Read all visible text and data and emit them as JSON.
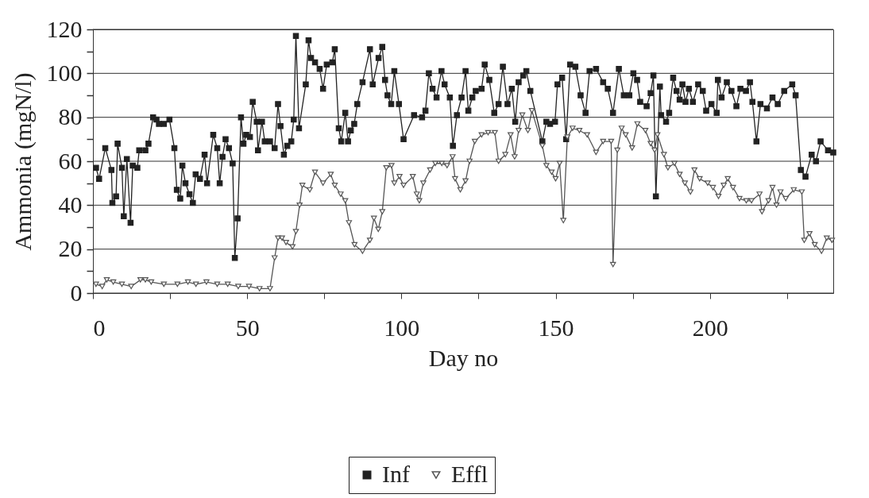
{
  "chart_data": {
    "type": "line",
    "xlabel": "Day no",
    "ylabel": "Ammonia (mgN/l)",
    "xlim": [
      0,
      240
    ],
    "ylim": [
      0,
      120
    ],
    "xticks": [
      0,
      {
        "value": 25,
        "label": null
      },
      50,
      {
        "value": 75,
        "label": null
      },
      100,
      {
        "value": 125,
        "label": null
      },
      150,
      {
        "value": 175,
        "label": null
      },
      200,
      {
        "value": 225,
        "label": null
      }
    ],
    "yticks": [
      0,
      {
        "value": 10,
        "label": null
      },
      20,
      {
        "value": 30,
        "label": null
      },
      40,
      {
        "value": 50,
        "label": null
      },
      60,
      {
        "value": 70,
        "label": null
      },
      80,
      {
        "value": 90,
        "label": null
      },
      100,
      {
        "value": 110,
        "label": null
      },
      120
    ],
    "grid": "y",
    "legend": "bottom",
    "line_style": "solid",
    "series": [
      {
        "name": "Inf",
        "color": "#222222",
        "marker": "square",
        "x": [
          1,
          2,
          4,
          6,
          6.3,
          7.5,
          8,
          9.4,
          10,
          11,
          12.2,
          12.9,
          14.4,
          15,
          17,
          18,
          19.5,
          20.6,
          21.4,
          23,
          24.8,
          26.4,
          27.2,
          28.3,
          29,
          30,
          31.3,
          32.4,
          33.3,
          34.7,
          36.2,
          37,
          39,
          40.3,
          41.1,
          42,
          43,
          44.1,
          45.3,
          46,
          46.9,
          48,
          48.8,
          49.7,
          50.9,
          51.8,
          53.1,
          53.5,
          54.8,
          55.7,
          57.4,
          58.9,
          60,
          60.8,
          61.9,
          63,
          64.3,
          65.1,
          65.8,
          66.8,
          69,
          69.9,
          70.7,
          72,
          73.5,
          74.6,
          75.8,
          77.6,
          78.4,
          79.7,
          80.5,
          81.8,
          82.7,
          83.6,
          84.7,
          85.7,
          87.4,
          89.8,
          90.7,
          92.6,
          93.8,
          94.7,
          95.5,
          96.7,
          97.7,
          99.2,
          100.7,
          104.1,
          106.7,
          107.8,
          108.9,
          110.1,
          111.4,
          113,
          114,
          115.7,
          116.7,
          118,
          119.5,
          120.8,
          121.7,
          123,
          124.1,
          126,
          127,
          128.5,
          130.1,
          131.5,
          132.9,
          134.4,
          135.8,
          136.9,
          138,
          139.5,
          140.5,
          141.8,
          145.7,
          147,
          148.2,
          149.8,
          150.6,
          152.1,
          153.4,
          154.7,
          156.4,
          158.1,
          159.7,
          161,
          163.1,
          165.4,
          166.9,
          168.6,
          170.5,
          172.1,
          173.9,
          175.2,
          176.4,
          177.4,
          179.5,
          180.8,
          181.7,
          182.5,
          183.8,
          184.2,
          185.8,
          186.8,
          188.1,
          189.2,
          190.2,
          191.1,
          192.1,
          193.2,
          194.5,
          196.2,
          197.7,
          198.8,
          200.5,
          202.2,
          202.6,
          203.8,
          205.5,
          207,
          208.6,
          209.9,
          211.7,
          213,
          213.8,
          215.1,
          216.4,
          218.5,
          220.3,
          222,
          224.1,
          226.7,
          227.8,
          229.5,
          231,
          233,
          234.4,
          235.9,
          238.3,
          240
        ],
        "values": [
          57,
          52,
          66,
          56,
          41,
          44,
          68,
          57,
          35,
          61,
          32,
          58,
          57,
          65,
          65,
          68,
          80,
          79,
          77,
          77,
          79,
          66,
          47,
          43,
          58,
          50,
          45,
          41,
          54,
          52,
          63,
          50,
          72,
          66,
          50,
          62,
          70,
          66,
          59,
          16,
          34,
          80,
          68,
          72,
          71,
          87,
          78,
          65,
          78,
          69,
          69,
          66,
          86,
          76,
          63,
          67,
          69,
          79,
          117,
          75,
          95,
          115,
          107,
          105,
          102,
          93,
          104,
          105,
          111,
          75,
          69,
          82,
          69,
          74,
          77,
          86,
          96,
          111,
          95,
          107,
          112,
          97,
          90,
          86,
          101,
          86,
          70,
          81,
          80,
          83,
          100,
          93,
          89,
          101,
          95,
          89,
          67,
          81,
          89,
          101,
          83,
          89,
          92,
          93,
          104,
          97,
          82,
          86,
          103,
          86,
          93,
          78,
          96,
          99,
          101,
          92,
          69,
          78,
          77,
          78,
          95,
          98,
          70,
          104,
          103,
          90,
          82,
          101,
          102,
          96,
          93,
          82,
          102,
          90,
          90,
          100,
          97,
          87,
          85,
          91,
          99,
          44,
          94,
          81,
          78,
          82,
          98,
          92,
          88,
          95,
          87,
          93,
          87,
          95,
          92,
          83,
          86,
          82,
          97,
          89,
          96,
          92,
          85,
          93,
          92,
          96,
          87,
          69,
          86,
          84,
          89,
          86,
          92,
          95,
          90,
          56,
          53,
          63,
          60,
          69,
          65,
          64
        ]
      },
      {
        "name": "Effl",
        "color": "#555555",
        "marker": "triangle-down",
        "x": [
          1,
          3,
          4.5,
          6.6,
          9.4,
          12.4,
          15.4,
          17,
          18.9,
          23,
          27.4,
          30.8,
          33.4,
          36.8,
          40.3,
          43.7,
          47.1,
          50.6,
          54,
          57.4,
          58.9,
          60,
          61.3,
          62.6,
          64.7,
          65.8,
          67,
          67.9,
          70.3,
          72,
          74.6,
          77.1,
          78.4,
          80.3,
          81.8,
          83,
          84.8,
          87.4,
          89.8,
          91.1,
          92.5,
          93.8,
          95.1,
          96.8,
          97.7,
          99.4,
          100.7,
          103.7,
          105,
          105.8,
          107.1,
          109.3,
          111,
          113.1,
          114.8,
          116.6,
          117.4,
          119.1,
          120.8,
          122.1,
          123.8,
          126,
          128.1,
          130.3,
          131.5,
          133.7,
          135.4,
          136.7,
          138,
          139.2,
          141,
          142.3,
          145.7,
          147,
          148.7,
          150,
          151.3,
          152.5,
          153.8,
          155.5,
          157.7,
          160.2,
          163.1,
          165.4,
          168,
          168.6,
          170,
          171.4,
          172.7,
          174.8,
          176.5,
          179.1,
          180.8,
          182.1,
          183,
          185.1,
          186.4,
          188.5,
          190.2,
          191.9,
          193.7,
          195,
          196.7,
          199.3,
          201,
          202.8,
          204.5,
          205.8,
          207.5,
          209.6,
          211.8,
          213.5,
          216.1,
          216.9,
          219,
          220.3,
          221.6,
          222.9,
          224.6,
          227.2,
          229.8,
          230.6,
          232.3,
          234,
          236.2,
          237.9,
          239.6
        ],
        "values": [
          4,
          3,
          6,
          5,
          4,
          3,
          6,
          6,
          5,
          4,
          4,
          5,
          4,
          5,
          4,
          4,
          3,
          3,
          2,
          2,
          16,
          25,
          25,
          23,
          21,
          28,
          40,
          49,
          47,
          55,
          50,
          54,
          49,
          45,
          42,
          32,
          22,
          19,
          24,
          34,
          29,
          37,
          57,
          58,
          50,
          53,
          49,
          53,
          45,
          42,
          50,
          56,
          59,
          59,
          58,
          62,
          52,
          47,
          51,
          60,
          69,
          72,
          73,
          73,
          60,
          63,
          72,
          62,
          74,
          81,
          74,
          83,
          67,
          58,
          55,
          52,
          59,
          33,
          71,
          75,
          74,
          72,
          64,
          69,
          69,
          13,
          65,
          75,
          72,
          66,
          77,
          74,
          68,
          65,
          72,
          63,
          57,
          59,
          54,
          50,
          46,
          56,
          52,
          50,
          48,
          44,
          49,
          52,
          48,
          43,
          42,
          42,
          45,
          37,
          42,
          48,
          40,
          46,
          43,
          47,
          46,
          24,
          27,
          22,
          19,
          25,
          24
        ]
      }
    ]
  }
}
